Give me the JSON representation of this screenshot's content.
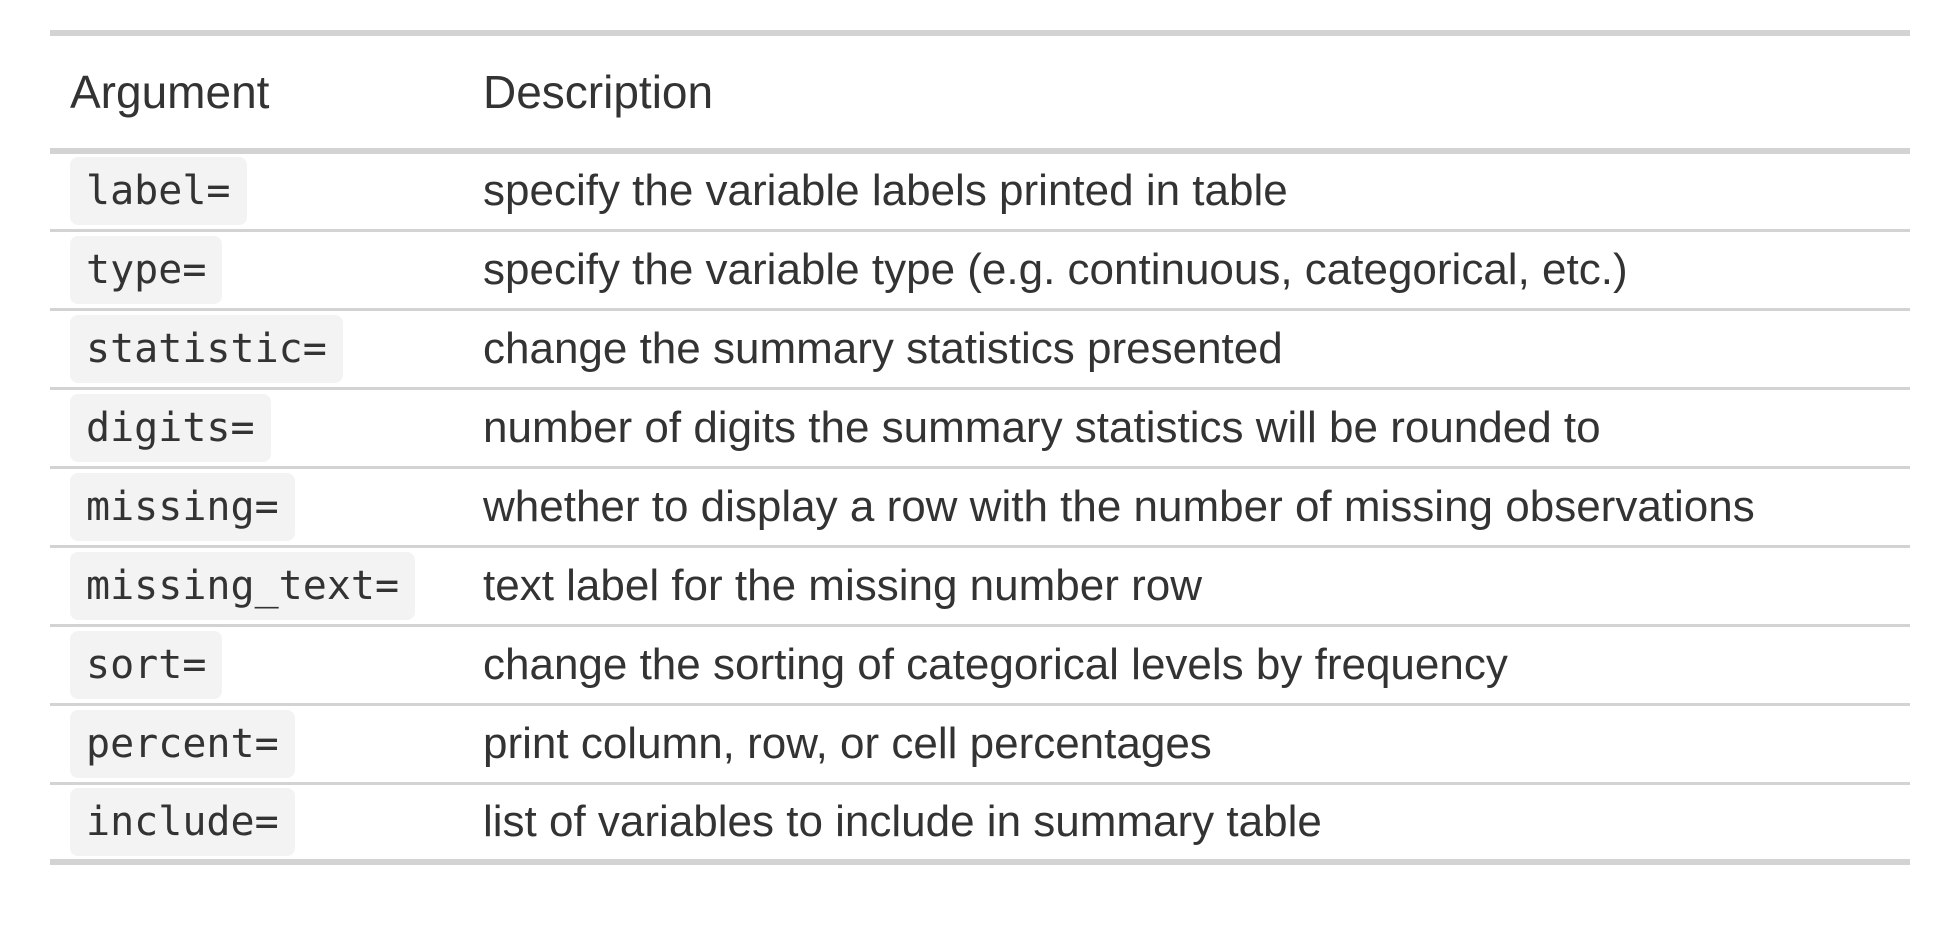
{
  "table": {
    "headers": {
      "argument": "Argument",
      "description": "Description"
    },
    "rows": [
      {
        "argument": "label=",
        "description": "specify the variable labels printed in table"
      },
      {
        "argument": "type=",
        "description": "specify the variable type (e.g. continuous, categorical, etc.)"
      },
      {
        "argument": "statistic=",
        "description": "change the summary statistics presented"
      },
      {
        "argument": "digits=",
        "description": "number of digits the summary statistics will be rounded to"
      },
      {
        "argument": "missing=",
        "description": "whether to display a row with the number of missing observations"
      },
      {
        "argument": "missing_text=",
        "description": "text label for the missing number row"
      },
      {
        "argument": "sort=",
        "description": "change the sorting of categorical levels by frequency"
      },
      {
        "argument": "percent=",
        "description": "print column, row, or cell percentages"
      },
      {
        "argument": "include=",
        "description": "list of variables to include in summary table"
      }
    ]
  }
}
